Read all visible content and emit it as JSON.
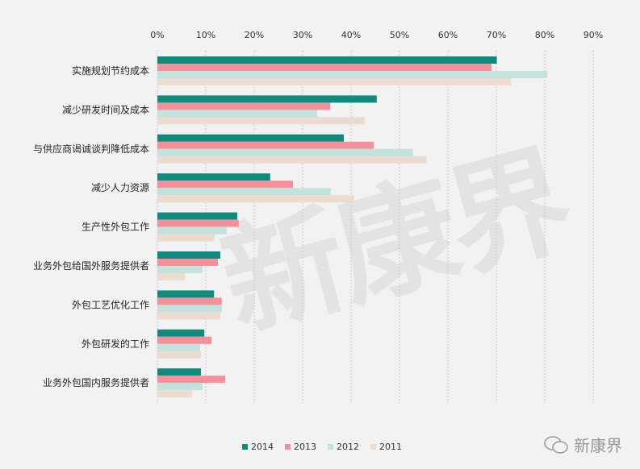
{
  "chart_data": {
    "type": "bar",
    "orientation": "horizontal",
    "categories": [
      "实施规划节约成本",
      "减少研发时间及成本",
      "与供应商谒诚谈判降低成本",
      "减少人力资源",
      "生产性外包工作",
      "业务外包给国外服务提供者",
      "外包工艺优化工作",
      "外包研发的工作",
      "业务外包国内服务提供者"
    ],
    "series": [
      {
        "name": "2014",
        "color": "#0e8a7e",
        "values": [
          70.1,
          45.3,
          38.5,
          23.3,
          16.5,
          13.0,
          11.7,
          9.7,
          9.0
        ]
      },
      {
        "name": "2013",
        "color": "#f4909a",
        "values": [
          69.0,
          35.7,
          44.7,
          28.0,
          16.8,
          12.5,
          13.3,
          11.2,
          14.0
        ]
      },
      {
        "name": "2012",
        "color": "#c2e2dd",
        "values": [
          80.5,
          33.0,
          52.8,
          35.8,
          14.3,
          9.3,
          13.3,
          8.8,
          9.3
        ]
      },
      {
        "name": "2011",
        "color": "#ecdccf",
        "values": [
          73.0,
          42.8,
          55.6,
          40.6,
          11.8,
          5.7,
          13.0,
          9.0,
          7.2
        ]
      }
    ],
    "xticks": [
      "0%",
      "10%",
      "20%",
      "30%",
      "40%",
      "50%",
      "60%",
      "70%",
      "80%",
      "90%"
    ],
    "xlim": [
      0,
      90
    ],
    "grid": true,
    "legend_position": "bottom",
    "title": "",
    "xlabel": "",
    "ylabel": ""
  },
  "watermark": {
    "text": "新康界"
  }
}
